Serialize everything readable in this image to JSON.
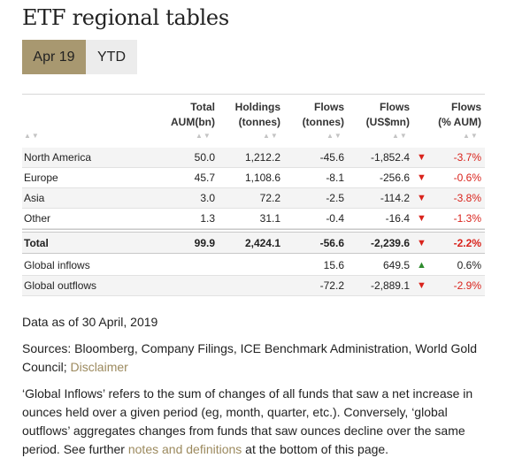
{
  "title": "ETF regional tables",
  "tabs": [
    {
      "label": "Apr 19",
      "active": true
    },
    {
      "label": "YTD",
      "active": false
    }
  ],
  "columns": [
    {
      "line1": "Total",
      "line2": "AUM(bn)"
    },
    {
      "line1": "Holdings",
      "line2": "(tonnes)"
    },
    {
      "line1": "Flows",
      "line2": "(tonnes)"
    },
    {
      "line1": "Flows",
      "line2": "(US$mn)"
    },
    {
      "line1": "Flows",
      "line2": "(% AUM)"
    }
  ],
  "sort_glyph": "▲▼",
  "regions": [
    {
      "name": "North America",
      "aum": "50.0",
      "holdings": "1,212.2",
      "flows_t": "-45.6",
      "flows_usd": "-1,852.4",
      "dir": "down",
      "pct": "-3.7%"
    },
    {
      "name": "Europe",
      "aum": "45.7",
      "holdings": "1,108.6",
      "flows_t": "-8.1",
      "flows_usd": "-256.6",
      "dir": "down",
      "pct": "-0.6%"
    },
    {
      "name": "Asia",
      "aum": "3.0",
      "holdings": "72.2",
      "flows_t": "-2.5",
      "flows_usd": "-114.2",
      "dir": "down",
      "pct": "-3.8%"
    },
    {
      "name": "Other",
      "aum": "1.3",
      "holdings": "31.1",
      "flows_t": "-0.4",
      "flows_usd": "-16.4",
      "dir": "down",
      "pct": "-1.3%"
    }
  ],
  "total": {
    "name": "Total",
    "aum": "99.9",
    "holdings": "2,424.1",
    "flows_t": "-56.6",
    "flows_usd": "-2,239.6",
    "dir": "down",
    "pct": "-2.2%"
  },
  "global": [
    {
      "name": "Global inflows",
      "flows_t": "15.6",
      "flows_usd": "649.5",
      "dir": "up",
      "pct": "0.6%"
    },
    {
      "name": "Global outflows",
      "flows_t": "-72.2",
      "flows_usd": "-2,889.1",
      "dir": "down",
      "pct": "-2.9%"
    }
  ],
  "arrows": {
    "up": "▲",
    "down": "▼"
  },
  "colors": {
    "accent": "#a89870",
    "negative": "#d9231c",
    "positive": "#2e8b2e",
    "link": "#9c8a5e"
  },
  "notes": {
    "date": "Data as of 30 April, 2019",
    "sources": "Sources: Bloomberg, Company Filings, ICE Benchmark Administration, World Gold Council; ",
    "disclaimer_link": "Disclaimer",
    "explanation": "‘Global Inflows’ refers to the sum of changes of all funds that saw a net increase in ounces held over a given period (eg, month, quarter, etc.). Conversely, ‘global outflows’ aggregates changes from funds that saw ounces decline over the same period. See further ",
    "notes_link": "notes and definitions",
    "explanation_end": " at the bottom of this page."
  }
}
